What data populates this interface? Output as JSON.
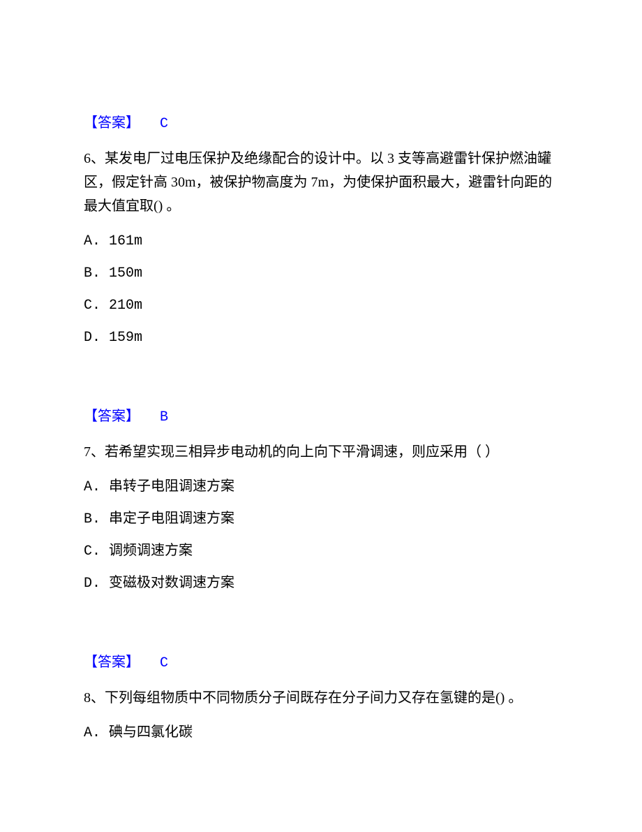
{
  "colors": {
    "answer_color": "#0000ff",
    "text_color": "#000000",
    "background_color": "#ffffff"
  },
  "typography": {
    "body_fontsize": 20,
    "font_family": "SimSun",
    "line_height": 1.7
  },
  "block1": {
    "answer_label": "【答案】",
    "answer_value": "C",
    "question": "6、某发电厂过电压保护及绝缘配合的设计中。以 3 支等高避雷针保护燃油罐区，假定针高 30m，被保护物高度为 7m，为使保护面积最大，避雷针向距的最大值宜取() 。",
    "options": {
      "a": "A. 161m",
      "b": "B. 150m",
      "c": "C. 210m",
      "d": "D. 159m"
    }
  },
  "block2": {
    "answer_label": "【答案】",
    "answer_value": "B",
    "question": "7、若希望实现三相异步电动机的向上向下平滑调速，则应采用（ ）",
    "options": {
      "a": "A. 串转子电阻调速方案",
      "b": "B. 串定子电阻调速方案",
      "c": "C. 调频调速方案",
      "d": "D. 变磁极对数调速方案"
    }
  },
  "block3": {
    "answer_label": "【答案】",
    "answer_value": "C",
    "question": "8、下列每组物质中不同物质分子间既存在分子间力又存在氢键的是() 。",
    "options": {
      "a": "A. 碘与四氯化碳"
    }
  }
}
